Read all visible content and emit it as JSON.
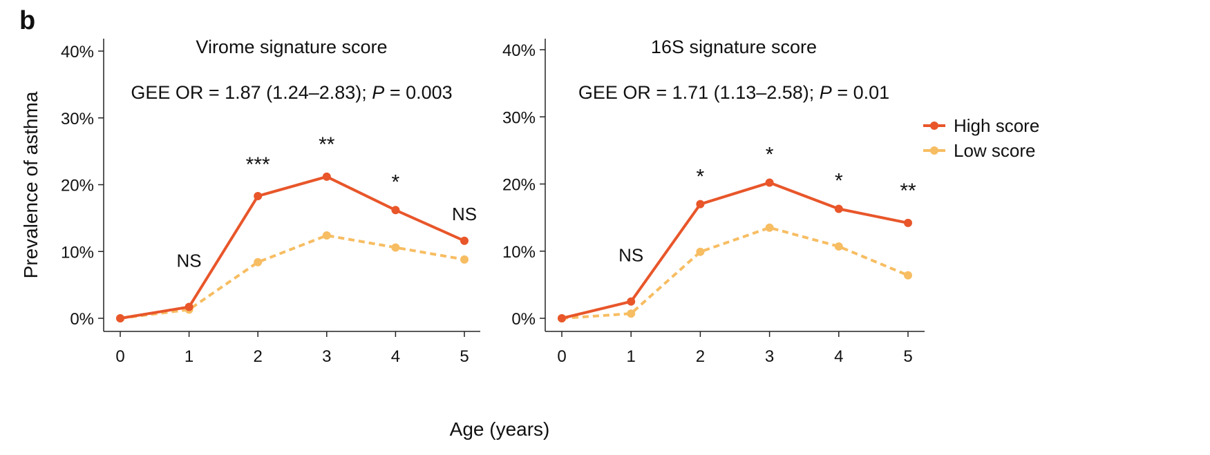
{
  "panel_label": "b",
  "shared": {
    "xlabel": "Age (years)",
    "ylabel": "Prevalence of asthma"
  },
  "legend": {
    "placement": "right",
    "items": [
      {
        "label": "High score",
        "color": "#e8562a"
      },
      {
        "label": "Low score",
        "color": "#f7bd62"
      }
    ]
  },
  "chart_data": [
    {
      "type": "line",
      "title": "Virome signature score",
      "subtitle_prefix": "GEE OR = 1.87 (1.24–2.83); ",
      "subtitle_p": "P",
      "subtitle_suffix": " = 0.003",
      "x": [
        0,
        1,
        2,
        3,
        4,
        5
      ],
      "xticks": [
        "0",
        "1",
        "2",
        "3",
        "4",
        "5"
      ],
      "yticks": [
        "0%",
        "10%",
        "20%",
        "30%",
        "40%"
      ],
      "ylim": [
        0,
        40
      ],
      "series": [
        {
          "name": "High score",
          "color": "#e8562a",
          "style": "solid",
          "values": [
            0.0,
            1.7,
            18.3,
            21.2,
            16.2,
            11.6
          ]
        },
        {
          "name": "Low score",
          "color": "#f7bd62",
          "style": "dashed",
          "values": [
            0.0,
            1.3,
            8.4,
            12.4,
            10.6,
            8.8
          ]
        }
      ],
      "annotations": [
        "",
        "NS",
        "***",
        "**",
        "*",
        "NS"
      ]
    },
    {
      "type": "line",
      "title": "16S signature score",
      "subtitle_prefix": "GEE OR = 1.71 (1.13–2.58); ",
      "subtitle_p": "P",
      "subtitle_suffix": " = 0.01",
      "x": [
        0,
        1,
        2,
        3,
        4,
        5
      ],
      "xticks": [
        "0",
        "1",
        "2",
        "3",
        "4",
        "5"
      ],
      "yticks": [
        "0%",
        "10%",
        "20%",
        "30%",
        "40%"
      ],
      "ylim": [
        0,
        40
      ],
      "series": [
        {
          "name": "High score",
          "color": "#e8562a",
          "style": "solid",
          "values": [
            0.0,
            2.5,
            17.0,
            20.2,
            16.3,
            14.2
          ]
        },
        {
          "name": "Low score",
          "color": "#f7bd62",
          "style": "dashed",
          "values": [
            0.0,
            0.7,
            9.9,
            13.5,
            10.7,
            6.4
          ]
        }
      ],
      "annotations": [
        "",
        "NS",
        "*",
        "*",
        "*",
        "**"
      ]
    }
  ]
}
